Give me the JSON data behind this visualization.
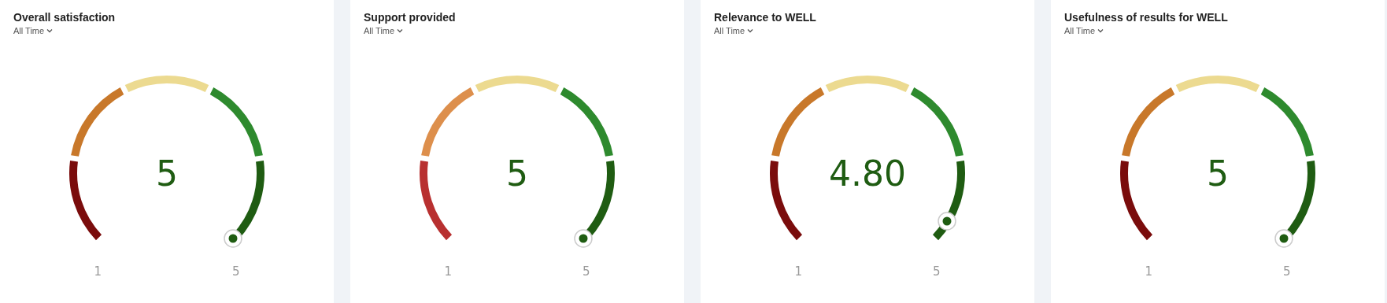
{
  "chart_data": [
    {
      "type": "donut",
      "title": "Overall satisfaction",
      "subtitle": "All Time",
      "categories": [
        null,
        null,
        null,
        null,
        null
      ],
      "values": [
        20,
        20,
        20,
        20,
        20
      ],
      "colors": [
        "#7a0c0c",
        "#c8782a",
        "#ecda90",
        "#2e8a2e",
        "#1f5c12"
      ],
      "annotations": [
        "5",
        "1",
        "5"
      ]
    },
    {
      "type": "donut",
      "title": "Support provided",
      "subtitle": "All Time",
      "categories": [
        null,
        null,
        null,
        null,
        null
      ],
      "values": [
        20,
        20,
        20,
        20,
        20
      ],
      "colors": [
        "#b83030",
        "#dd8f4c",
        "#ecda90",
        "#2e8a2e",
        "#1f5c12"
      ],
      "annotations": [
        "5",
        "1",
        "5"
      ]
    },
    {
      "type": "donut",
      "title": "Relevance to WELL",
      "subtitle": "All Time",
      "categories": [
        null,
        null,
        null,
        null,
        null
      ],
      "values": [
        20,
        20,
        20,
        20,
        20
      ],
      "colors": [
        "#7a0c0c",
        "#c8782a",
        "#ecda90",
        "#2e8a2e",
        "#1f5c12"
      ],
      "annotations": [
        "4.80",
        "1",
        "5"
      ]
    },
    {
      "type": "donut",
      "title": "Usefulness of results for WELL",
      "subtitle": "All Time",
      "categories": [
        null,
        null,
        null,
        null,
        null
      ],
      "values": [
        20,
        20,
        20,
        20,
        20
      ],
      "colors": [
        "#7a0c0c",
        "#c8782a",
        "#ecda90",
        "#2e8a2e",
        "#1f5c12"
      ],
      "annotations": [
        "5",
        "1",
        "5"
      ]
    }
  ]
}
